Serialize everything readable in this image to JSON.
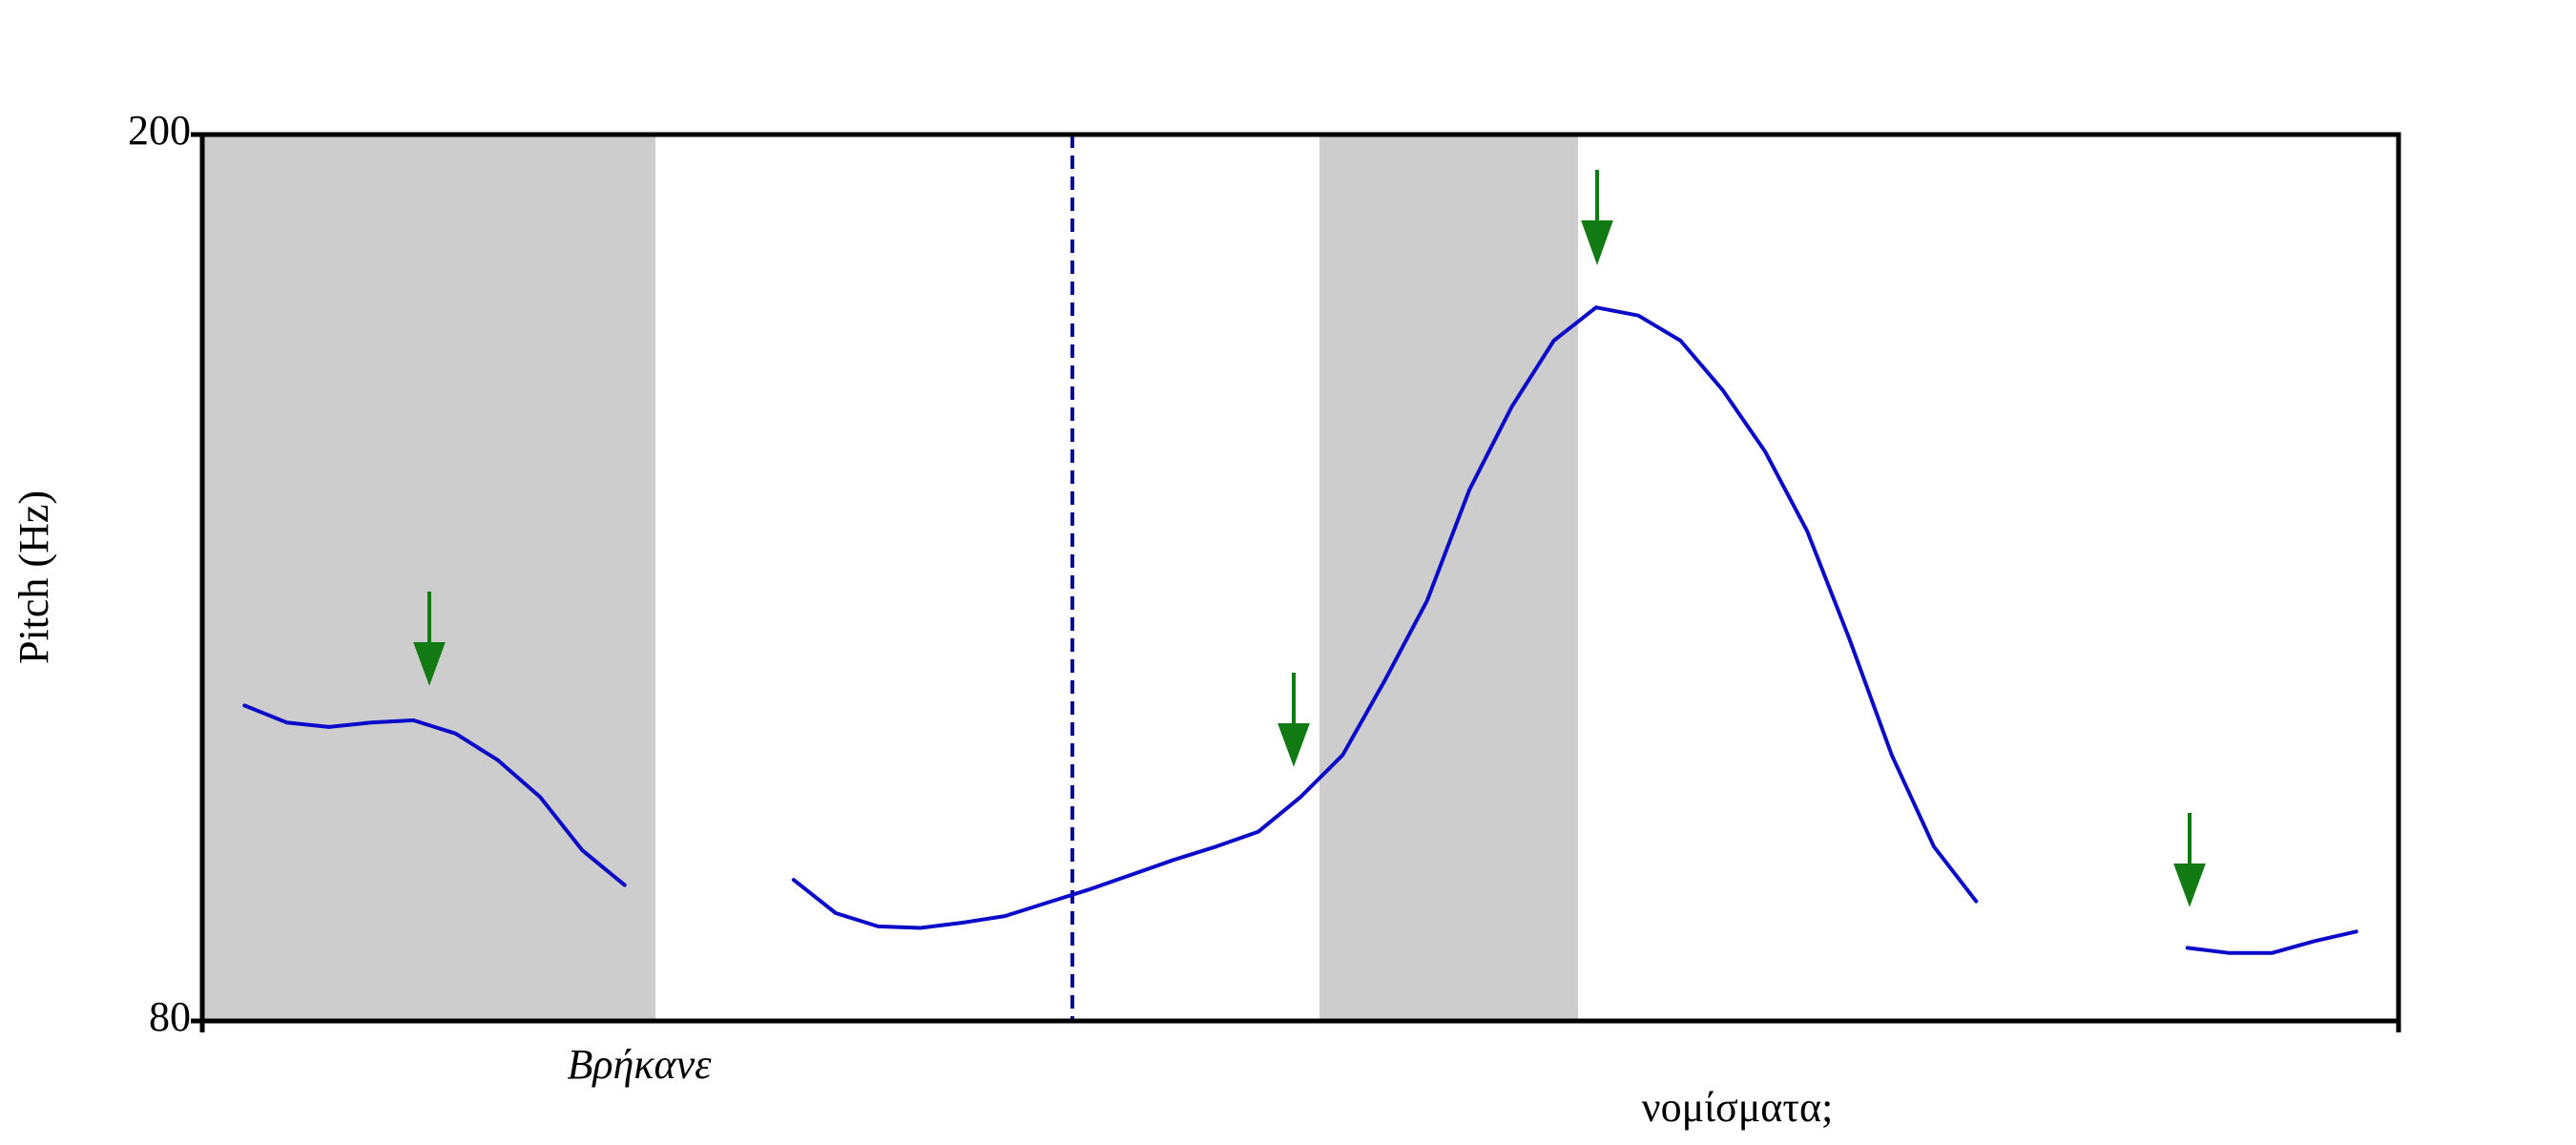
{
  "chart_data": {
    "type": "line",
    "ylabel": "Pitch (Hz)",
    "ylim": [
      80,
      200
    ],
    "yticks": [
      80,
      200
    ],
    "words": [
      "Βρήκανε",
      "νομίσματα;"
    ],
    "series": [
      {
        "color": "#0a0ac8",
        "values": [
          null,
          122.7,
          120.4,
          119.8,
          120.4,
          120.7,
          118.9,
          115.3,
          110.3,
          103.1,
          98.4,
          null,
          null,
          null,
          99.1,
          94.6,
          92.8,
          92.6,
          93.3,
          94.2,
          96.0,
          97.8,
          99.8,
          101.8,
          103.6,
          105.6,
          110.3,
          116.0,
          126.1,
          136.9,
          151.9,
          163.1,
          172.1,
          176.6,
          175.5,
          172.1,
          165.4,
          157.1,
          146.3,
          131.7,
          116.0,
          103.6,
          96.2,
          null,
          null,
          null,
          null,
          89.9,
          89.2,
          89.2,
          90.8,
          92.1,
          null
        ]
      }
    ]
  }
}
